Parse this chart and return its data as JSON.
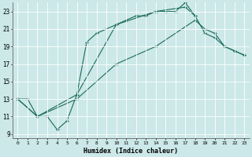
{
  "xlabel": "Humidex (Indice chaleur)",
  "bg_color": "#cce8e8",
  "grid_color": "#ffffff",
  "line_color": "#1a6b5a",
  "xlim": [
    -0.5,
    23.5
  ],
  "ylim": [
    8.5,
    24.0
  ],
  "xticks": [
    0,
    1,
    2,
    3,
    4,
    5,
    6,
    7,
    8,
    9,
    10,
    11,
    12,
    13,
    14,
    15,
    16,
    17,
    18,
    19,
    20,
    21,
    22,
    23
  ],
  "yticks": [
    9,
    11,
    13,
    15,
    17,
    19,
    21,
    23
  ],
  "series": [
    {
      "x": [
        0,
        1,
        2,
        3,
        4,
        5,
        6,
        7,
        8,
        10,
        11,
        12,
        13,
        14,
        15,
        16,
        17,
        18
      ],
      "y": [
        13,
        13,
        11,
        11,
        9.5,
        10.5,
        13.5,
        19.5,
        20.5,
        21.5,
        22,
        22.5,
        22.5,
        23,
        23,
        23,
        24,
        22.5
      ]
    },
    {
      "x": [
        0,
        2,
        6,
        10,
        14,
        17,
        18,
        19,
        20,
        21,
        22,
        23
      ],
      "y": [
        13,
        11,
        13.5,
        21.5,
        23,
        23.5,
        22.5,
        20.5,
        20,
        19,
        18.5,
        18
      ]
    },
    {
      "x": [
        0,
        2,
        6,
        10,
        14,
        18,
        19,
        20,
        21,
        22,
        23
      ],
      "y": [
        13,
        11,
        13,
        17,
        19,
        22,
        21,
        20.5,
        19,
        18.5,
        18
      ]
    }
  ]
}
